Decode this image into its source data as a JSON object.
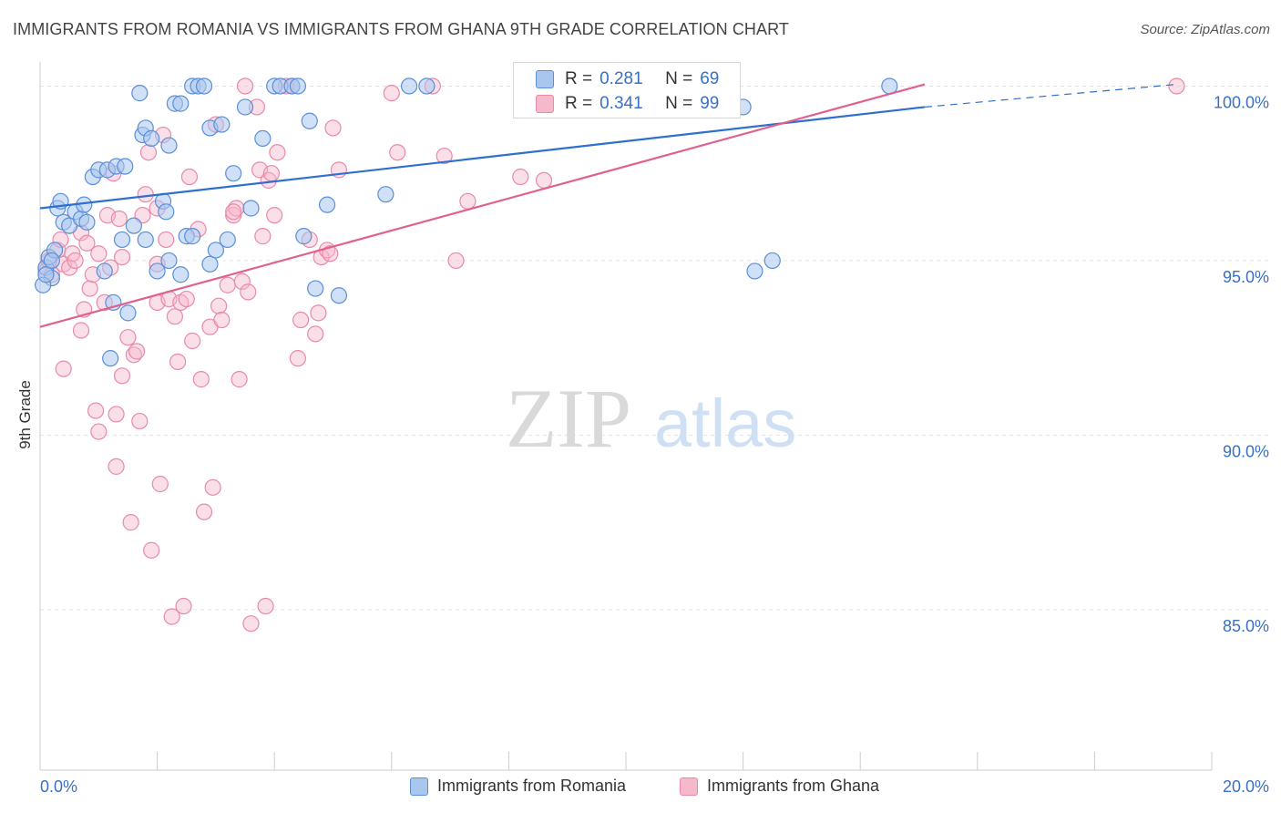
{
  "header": {
    "title": "IMMIGRANTS FROM ROMANIA VS IMMIGRANTS FROM GHANA 9TH GRADE CORRELATION CHART",
    "source": "Source: ZipAtlas.com"
  },
  "watermark": {
    "zip": "ZIP",
    "atlas": "atlas"
  },
  "colors": {
    "romania_fill": "#a9c6ef",
    "romania_stroke": "#5b8fd6",
    "romania_line": "#2f6fce",
    "ghana_fill": "#f6b9cc",
    "ghana_stroke": "#e88aa8",
    "ghana_line": "#e0618f",
    "axis_text": "#3a70c4",
    "grid": "#e3e3e3"
  },
  "stats": {
    "romania": {
      "r_label": "R =",
      "r_value": "0.281",
      "n_label": "N =",
      "n_value": "69"
    },
    "ghana": {
      "r_label": "R =",
      "r_value": "0.341",
      "n_label": "N =",
      "n_value": "99"
    }
  },
  "chart_data": {
    "type": "scatter",
    "title": "IMMIGRANTS FROM ROMANIA VS IMMIGRANTS FROM GHANA 9TH GRADE CORRELATION CHART",
    "xlabel": "",
    "ylabel": "9th Grade",
    "xlim": [
      0,
      20
    ],
    "ylim": [
      80.4,
      100.9
    ],
    "x_tick_labels": [
      "0.0%",
      "20.0%"
    ],
    "y_ticks": [
      85,
      90,
      95,
      100
    ],
    "y_tick_labels": [
      "85.0%",
      "90.0%",
      "95.0%",
      "100.0%"
    ],
    "grid": true,
    "legend": "bottom-center",
    "series": [
      {
        "name": "Immigrants from Romania",
        "trend": {
          "x0": 0,
          "y0": 96.5,
          "x1": 15.1,
          "y1": 99.4,
          "dashed_to_x": 19.4,
          "dashed_to_y": 100.05
        },
        "points": [
          [
            0.1,
            94.8
          ],
          [
            0.15,
            95.1
          ],
          [
            0.2,
            94.5
          ],
          [
            0.25,
            95.3
          ],
          [
            0.3,
            96.5
          ],
          [
            0.35,
            96.7
          ],
          [
            0.4,
            96.1
          ],
          [
            0.5,
            96.0
          ],
          [
            0.6,
            96.4
          ],
          [
            0.7,
            96.2
          ],
          [
            0.75,
            96.6
          ],
          [
            0.8,
            96.1
          ],
          [
            0.9,
            97.4
          ],
          [
            1.0,
            97.6
          ],
          [
            1.1,
            94.7
          ],
          [
            1.15,
            97.6
          ],
          [
            1.2,
            92.2
          ],
          [
            1.25,
            93.8
          ],
          [
            1.3,
            97.7
          ],
          [
            1.4,
            95.6
          ],
          [
            1.45,
            97.7
          ],
          [
            1.5,
            93.5
          ],
          [
            1.6,
            96.0
          ],
          [
            1.7,
            99.8
          ],
          [
            1.75,
            98.6
          ],
          [
            1.8,
            98.8
          ],
          [
            1.8,
            95.6
          ],
          [
            1.9,
            98.5
          ],
          [
            2.0,
            94.7
          ],
          [
            2.1,
            96.7
          ],
          [
            2.15,
            96.4
          ],
          [
            2.2,
            98.3
          ],
          [
            2.2,
            95.0
          ],
          [
            2.3,
            99.5
          ],
          [
            2.4,
            99.5
          ],
          [
            2.4,
            94.6
          ],
          [
            2.5,
            95.7
          ],
          [
            2.6,
            95.7
          ],
          [
            2.6,
            100.0
          ],
          [
            2.7,
            100.0
          ],
          [
            2.8,
            100.0
          ],
          [
            2.9,
            98.8
          ],
          [
            2.9,
            94.9
          ],
          [
            3.1,
            98.9
          ],
          [
            3.2,
            95.6
          ],
          [
            3.3,
            97.5
          ],
          [
            3.5,
            99.4
          ],
          [
            3.6,
            96.5
          ],
          [
            3.8,
            98.5
          ],
          [
            4.0,
            100.0
          ],
          [
            4.1,
            100.0
          ],
          [
            4.3,
            100.0
          ],
          [
            4.4,
            100.0
          ],
          [
            4.5,
            95.7
          ],
          [
            4.6,
            99.0
          ],
          [
            4.7,
            94.2
          ],
          [
            4.9,
            96.6
          ],
          [
            5.1,
            94.0
          ],
          [
            5.9,
            96.9
          ],
          [
            6.3,
            100.0
          ],
          [
            6.6,
            100.0
          ],
          [
            12.0,
            99.4
          ],
          [
            12.2,
            94.7
          ],
          [
            12.5,
            95.0
          ],
          [
            14.5,
            100.0
          ],
          [
            0.05,
            94.3
          ],
          [
            0.1,
            94.6
          ],
          [
            0.2,
            95.0
          ],
          [
            3.0,
            95.3
          ]
        ]
      },
      {
        "name": "Immigrants from Ghana",
        "trend": {
          "x0": 0,
          "y0": 93.1,
          "x1": 15.1,
          "y1": 100.05
        },
        "points": [
          [
            0.1,
            94.7
          ],
          [
            0.15,
            95.0
          ],
          [
            0.2,
            94.6
          ],
          [
            0.3,
            95.3
          ],
          [
            0.35,
            95.6
          ],
          [
            0.4,
            94.9
          ],
          [
            0.4,
            91.9
          ],
          [
            0.5,
            94.8
          ],
          [
            0.55,
            95.2
          ],
          [
            0.6,
            95.0
          ],
          [
            0.7,
            95.8
          ],
          [
            0.7,
            93.0
          ],
          [
            0.75,
            93.6
          ],
          [
            0.8,
            95.5
          ],
          [
            0.85,
            94.2
          ],
          [
            0.9,
            94.6
          ],
          [
            0.95,
            90.7
          ],
          [
            1.0,
            95.2
          ],
          [
            1.0,
            90.1
          ],
          [
            1.1,
            93.8
          ],
          [
            1.15,
            96.3
          ],
          [
            1.2,
            94.8
          ],
          [
            1.25,
            97.5
          ],
          [
            1.3,
            90.6
          ],
          [
            1.3,
            89.1
          ],
          [
            1.35,
            96.2
          ],
          [
            1.4,
            95.1
          ],
          [
            1.4,
            91.7
          ],
          [
            1.5,
            92.8
          ],
          [
            1.55,
            87.5
          ],
          [
            1.6,
            92.3
          ],
          [
            1.65,
            92.4
          ],
          [
            1.7,
            90.4
          ],
          [
            1.75,
            96.3
          ],
          [
            1.8,
            96.9
          ],
          [
            1.85,
            98.1
          ],
          [
            1.9,
            86.7
          ],
          [
            2.0,
            93.8
          ],
          [
            2.0,
            96.5
          ],
          [
            2.05,
            88.6
          ],
          [
            2.1,
            98.6
          ],
          [
            2.15,
            95.6
          ],
          [
            2.2,
            93.9
          ],
          [
            2.25,
            84.8
          ],
          [
            2.3,
            93.4
          ],
          [
            2.35,
            92.1
          ],
          [
            2.4,
            93.8
          ],
          [
            2.45,
            85.1
          ],
          [
            2.5,
            93.9
          ],
          [
            2.55,
            97.4
          ],
          [
            2.6,
            92.7
          ],
          [
            2.7,
            95.9
          ],
          [
            2.75,
            91.6
          ],
          [
            2.8,
            87.8
          ],
          [
            2.9,
            93.1
          ],
          [
            2.95,
            88.5
          ],
          [
            3.0,
            98.9
          ],
          [
            3.05,
            93.7
          ],
          [
            3.1,
            93.3
          ],
          [
            3.2,
            94.3
          ],
          [
            3.3,
            96.3
          ],
          [
            3.35,
            96.5
          ],
          [
            3.4,
            91.6
          ],
          [
            3.45,
            94.4
          ],
          [
            3.5,
            100.0
          ],
          [
            3.55,
            94.1
          ],
          [
            3.6,
            84.6
          ],
          [
            3.7,
            99.4
          ],
          [
            3.75,
            97.6
          ],
          [
            3.8,
            95.7
          ],
          [
            3.85,
            85.1
          ],
          [
            3.9,
            97.3
          ],
          [
            3.95,
            97.5
          ],
          [
            4.0,
            96.3
          ],
          [
            4.05,
            98.1
          ],
          [
            4.2,
            100.0
          ],
          [
            4.3,
            100.0
          ],
          [
            4.4,
            92.2
          ],
          [
            4.45,
            93.3
          ],
          [
            4.6,
            95.6
          ],
          [
            4.7,
            92.9
          ],
          [
            4.75,
            93.5
          ],
          [
            4.8,
            95.1
          ],
          [
            4.9,
            95.3
          ],
          [
            4.95,
            95.2
          ],
          [
            5.0,
            98.8
          ],
          [
            5.1,
            97.6
          ],
          [
            6.0,
            99.8
          ],
          [
            6.1,
            98.1
          ],
          [
            6.7,
            100.0
          ],
          [
            6.9,
            98.0
          ],
          [
            7.1,
            95.0
          ],
          [
            7.3,
            96.7
          ],
          [
            8.2,
            97.4
          ],
          [
            8.6,
            97.3
          ],
          [
            9.0,
            100.0
          ],
          [
            19.4,
            100.0
          ],
          [
            3.3,
            96.4
          ],
          [
            2.0,
            94.9
          ]
        ]
      }
    ]
  },
  "legend": {
    "romania_label": "Immigrants from Romania",
    "ghana_label": "Immigrants from Ghana"
  }
}
